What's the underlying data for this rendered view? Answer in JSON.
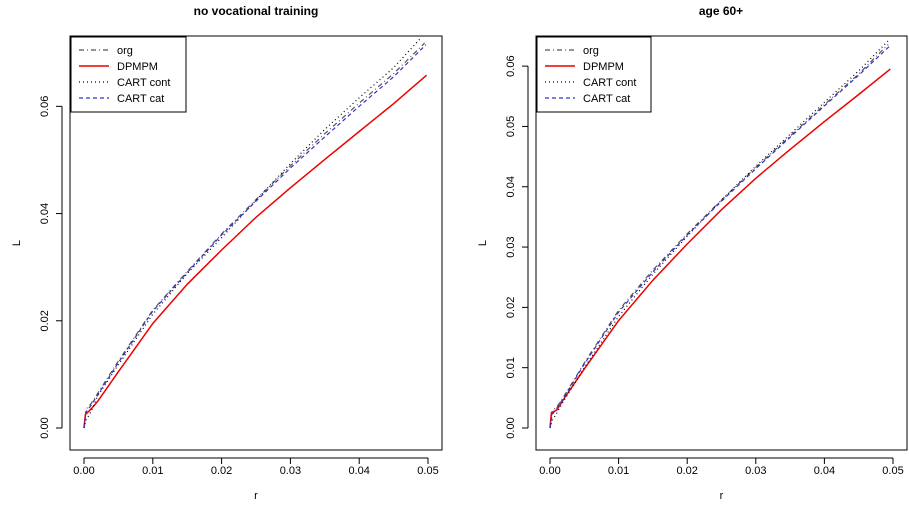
{
  "chart_data": [
    {
      "type": "line",
      "title": "no vocational training",
      "xlabel": "r",
      "ylabel": "L",
      "xlim": [
        0,
        0.05
      ],
      "ylim": [
        0,
        0.072
      ],
      "x_ticks": [
        "0.00",
        "0.01",
        "0.02",
        "0.03",
        "0.04",
        "0.05"
      ],
      "x_tick_values": [
        0,
        0.01,
        0.02,
        0.03,
        0.04,
        0.05
      ],
      "y_ticks": [
        "0.00",
        "0.02",
        "0.04",
        "0.06"
      ],
      "y_tick_values": [
        0,
        0.02,
        0.04,
        0.06
      ],
      "grid": false,
      "legend_position": "top-left",
      "series": [
        {
          "name": "org",
          "color": "#555555",
          "dash": "dashdot",
          "x": [
            0,
            0.0003,
            0.001,
            0.002,
            0.005,
            0.01,
            0.015,
            0.02,
            0.025,
            0.03,
            0.035,
            0.04,
            0.045,
            0.0495
          ],
          "y": [
            0,
            0.0035,
            0.0045,
            0.0065,
            0.0125,
            0.022,
            0.0292,
            0.0362,
            0.0426,
            0.0489,
            0.0549,
            0.0606,
            0.0661,
            0.0718
          ]
        },
        {
          "name": "DPMPM",
          "color": "#ee0000",
          "dash": "solid",
          "x": [
            0,
            0.0002,
            0.001,
            0.002,
            0.005,
            0.01,
            0.015,
            0.02,
            0.025,
            0.03,
            0.035,
            0.04,
            0.045,
            0.0498
          ],
          "y": [
            0,
            0.0025,
            0.0035,
            0.005,
            0.0105,
            0.0195,
            0.0268,
            0.0332,
            0.0393,
            0.0448,
            0.0501,
            0.0553,
            0.0605,
            0.0658
          ]
        },
        {
          "name": "CART cont",
          "color": "#000000",
          "dash": "dotted",
          "x": [
            0,
            0.0003,
            0.001,
            0.002,
            0.005,
            0.01,
            0.015,
            0.02,
            0.025,
            0.03,
            0.035,
            0.04,
            0.045,
            0.049
          ],
          "y": [
            0,
            0.0015,
            0.003,
            0.006,
            0.0118,
            0.0212,
            0.0288,
            0.0355,
            0.0425,
            0.0493,
            0.0557,
            0.0616,
            0.0672,
            0.0728
          ]
        },
        {
          "name": "CART cat",
          "color": "#3333cc",
          "dash": "dashed",
          "x": [
            0,
            0.0003,
            0.001,
            0.002,
            0.005,
            0.01,
            0.015,
            0.02,
            0.025,
            0.03,
            0.035,
            0.04,
            0.045,
            0.0497
          ],
          "y": [
            0,
            0.003,
            0.0042,
            0.0062,
            0.0122,
            0.0218,
            0.029,
            0.036,
            0.0423,
            0.0485,
            0.0543,
            0.06,
            0.0655,
            0.0715
          ]
        }
      ]
    },
    {
      "type": "line",
      "title": "age 60+",
      "xlabel": "r",
      "ylabel": "L",
      "xlim": [
        0,
        0.05
      ],
      "ylim": [
        0,
        0.064
      ],
      "x_ticks": [
        "0.00",
        "0.01",
        "0.02",
        "0.03",
        "0.04",
        "0.05"
      ],
      "x_tick_values": [
        0,
        0.01,
        0.02,
        0.03,
        0.04,
        0.05
      ],
      "y_ticks": [
        "0.00",
        "0.01",
        "0.02",
        "0.03",
        "0.04",
        "0.05",
        "0.06"
      ],
      "y_tick_values": [
        0,
        0.01,
        0.02,
        0.03,
        0.04,
        0.05,
        0.06
      ],
      "grid": false,
      "legend_position": "top-left",
      "series": [
        {
          "name": "org",
          "color": "#555555",
          "dash": "dashdot",
          "x": [
            0,
            0.0003,
            0.001,
            0.002,
            0.005,
            0.01,
            0.015,
            0.02,
            0.025,
            0.03,
            0.035,
            0.04,
            0.045,
            0.0493
          ],
          "y": [
            0,
            0.0028,
            0.0035,
            0.0052,
            0.0108,
            0.0195,
            0.0262,
            0.0322,
            0.0378,
            0.0432,
            0.0484,
            0.0536,
            0.0587,
            0.0636
          ]
        },
        {
          "name": "DPMPM",
          "color": "#ee0000",
          "dash": "solid",
          "x": [
            0,
            0.0002,
            0.001,
            0.002,
            0.005,
            0.01,
            0.015,
            0.02,
            0.025,
            0.03,
            0.035,
            0.04,
            0.045,
            0.0496
          ],
          "y": [
            0,
            0.0025,
            0.003,
            0.0048,
            0.0098,
            0.0178,
            0.0245,
            0.0305,
            0.0362,
            0.0414,
            0.0462,
            0.0508,
            0.0553,
            0.0595
          ]
        },
        {
          "name": "CART cont",
          "color": "#000000",
          "dash": "dotted",
          "x": [
            0,
            0.0003,
            0.001,
            0.002,
            0.005,
            0.01,
            0.015,
            0.02,
            0.025,
            0.03,
            0.035,
            0.04,
            0.045,
            0.0493
          ],
          "y": [
            0,
            0.0012,
            0.0025,
            0.0045,
            0.01,
            0.0185,
            0.0255,
            0.0318,
            0.0378,
            0.0434,
            0.0487,
            0.054,
            0.0592,
            0.0642
          ]
        },
        {
          "name": "CART cat",
          "color": "#3333cc",
          "dash": "dashed",
          "x": [
            0,
            0.0003,
            0.001,
            0.002,
            0.005,
            0.01,
            0.015,
            0.02,
            0.025,
            0.03,
            0.035,
            0.04,
            0.045,
            0.0495
          ],
          "y": [
            0,
            0.0022,
            0.0033,
            0.005,
            0.0106,
            0.0192,
            0.0259,
            0.032,
            0.0376,
            0.043,
            0.0482,
            0.0534,
            0.0585,
            0.0633
          ]
        }
      ]
    }
  ]
}
